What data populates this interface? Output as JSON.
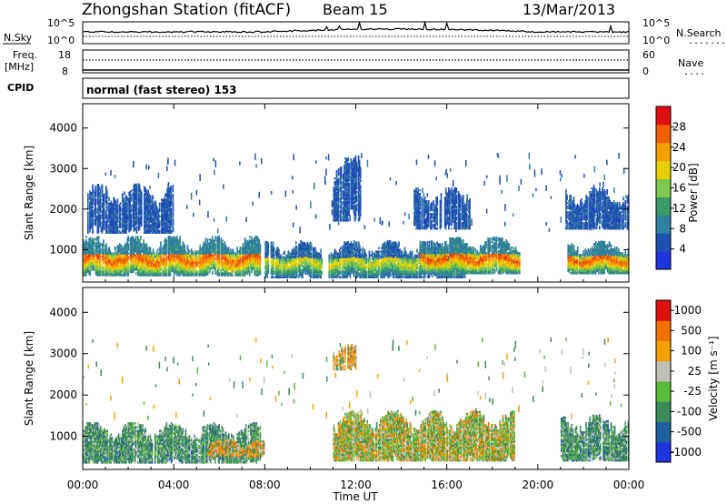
{
  "header": {
    "title": "Zhongshan Station (fitACF)",
    "beam": "Beam 15",
    "date": "13/Mar/2013"
  },
  "top_panels": {
    "nsky": {
      "label": "N.Sky",
      "left_ticks": [
        "10^5",
        "10^0"
      ],
      "right_ticks": [
        "10^5",
        "10^0"
      ],
      "right_label": "N.Search",
      "right_legend": "........"
    },
    "freq": {
      "label_line1": "Freq.",
      "label_line2": "[MHz]",
      "left_ticks": [
        "18",
        "8"
      ],
      "right_ticks": [
        "60",
        "0"
      ],
      "right_label": "Nave",
      "right_legend": "...."
    },
    "cpid": {
      "label": "CPID",
      "value": "normal (fast stereo) 153"
    }
  },
  "chart_data": [
    {
      "type": "heatmap",
      "name": "power",
      "ylabel": "Slant Range [km]",
      "y_ticks": [
        "1000",
        "2000",
        "3000",
        "4000"
      ],
      "ylim": [
        200,
        4600
      ],
      "colorbar_label": "Power [dB]",
      "colorbar_ticks": [
        "4",
        "8",
        "12",
        "16",
        "20",
        "24",
        "28"
      ],
      "colorbar_range": [
        0,
        32
      ],
      "colorbar_colors": [
        "#1f35e0",
        "#1f4fb0",
        "#2f7fa0",
        "#3a9a6a",
        "#7cc850",
        "#e8d000",
        "#f5a000",
        "#f06000",
        "#e01010"
      ],
      "features": [
        {
          "t_start": 0.0,
          "t_end": 7.8,
          "range_low": 350,
          "range_high": 1300,
          "peak_db": 28
        },
        {
          "t_start": 0.2,
          "t_end": 4.0,
          "range_low": 1400,
          "range_high": 2600,
          "peak_db": 8
        },
        {
          "t_start": 8.0,
          "t_end": 10.5,
          "range_low": 300,
          "range_high": 1200,
          "peak_db": 20
        },
        {
          "t_start": 10.8,
          "t_end": 16.8,
          "range_low": 300,
          "range_high": 1200,
          "peak_db": 20
        },
        {
          "t_start": 14.8,
          "t_end": 19.2,
          "range_low": 400,
          "range_high": 1300,
          "peak_db": 28
        },
        {
          "t_start": 11.0,
          "t_end": 12.2,
          "range_low": 1700,
          "range_high": 3300,
          "peak_db": 8
        },
        {
          "t_start": 14.5,
          "t_end": 17.0,
          "range_low": 1500,
          "range_high": 2500,
          "peak_db": 8
        },
        {
          "t_start": 21.3,
          "t_end": 24.0,
          "range_low": 400,
          "range_high": 1200,
          "peak_db": 28
        },
        {
          "t_start": 21.0,
          "t_end": 24.0,
          "range_low": 1500,
          "range_high": 2500,
          "peak_db": 8
        }
      ]
    },
    {
      "type": "heatmap",
      "name": "velocity",
      "ylabel": "Slant Range [km]",
      "y_ticks": [
        "1000",
        "2000",
        "3000",
        "4000"
      ],
      "ylim": [
        200,
        4600
      ],
      "xlabel": "Time UT",
      "x_ticks": [
        "00:00",
        "04:00",
        "08:00",
        "12:00",
        "16:00",
        "20:00",
        "00:00"
      ],
      "xlim": [
        0,
        24
      ],
      "colorbar_label": "Velocity [m s⁻¹]",
      "colorbar_ticks": [
        "1000",
        "500",
        "100",
        "25",
        "-25",
        "-100",
        "-500",
        "-1000"
      ],
      "colorbar_colors": [
        "#1f35e0",
        "#1f5fa0",
        "#3a8a5a",
        "#5aba3a",
        "#c0c0b8",
        "#f5a000",
        "#f07000",
        "#e01010"
      ],
      "features": [
        {
          "t_start": 0.0,
          "t_end": 7.8,
          "range_low": 350,
          "range_high": 1300,
          "dominant": "100 to 500"
        },
        {
          "t_start": 5.5,
          "t_end": 8.0,
          "range_low": 500,
          "range_high": 900,
          "dominant": "-100 to -500"
        },
        {
          "t_start": 11.0,
          "t_end": 19.0,
          "range_low": 400,
          "range_high": 1600,
          "dominant": "-25 to -500"
        },
        {
          "t_start": 11.0,
          "t_end": 12.0,
          "range_low": 2600,
          "range_high": 3200,
          "dominant": "-100 to -500"
        },
        {
          "t_start": 21.0,
          "t_end": 24.0,
          "range_low": 400,
          "range_high": 1500,
          "dominant": "100 to 500"
        }
      ]
    }
  ]
}
